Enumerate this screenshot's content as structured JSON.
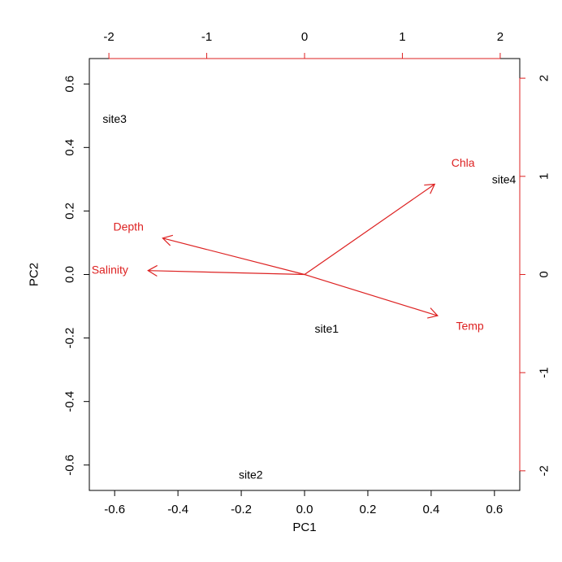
{
  "chart_data": {
    "type": "scatter",
    "subtype": "biplot",
    "title": "",
    "xlabel": "PC1",
    "ylabel": "PC2",
    "xlim": [
      -0.68,
      0.68
    ],
    "ylim": [
      -0.68,
      0.68
    ],
    "x_ticks": [
      -0.6,
      -0.4,
      -0.2,
      0.0,
      0.2,
      0.4,
      0.6
    ],
    "x_tick_labels": [
      "-0.6",
      "-0.4",
      "-0.2",
      "0.0",
      "0.2",
      "0.4",
      "0.6"
    ],
    "y_ticks": [
      -0.6,
      -0.4,
      -0.2,
      0.0,
      0.2,
      0.4,
      0.6
    ],
    "y_tick_labels": [
      "-0.6",
      "-0.4",
      "-0.2",
      "0.0",
      "0.2",
      "0.4",
      "0.6"
    ],
    "secondary_axes": {
      "range": [
        -2.2,
        2.2
      ],
      "top_ticks": [
        -2,
        -1,
        0,
        1,
        2
      ],
      "top_tick_labels": [
        "-2",
        "-1",
        "0",
        "1",
        "2"
      ],
      "right_ticks": [
        -2,
        -1,
        0,
        1,
        2
      ],
      "right_tick_labels": [
        "-2",
        "-1",
        "0",
        "1",
        "2"
      ],
      "color": "#dd2222"
    },
    "grid": false,
    "sites": [
      {
        "label": "site1",
        "x": 0.07,
        "y": -0.17
      },
      {
        "label": "site2",
        "x": -0.17,
        "y": -0.63
      },
      {
        "label": "site3",
        "x": -0.6,
        "y": 0.49
      },
      {
        "label": "site4",
        "x": 0.63,
        "y": 0.3
      }
    ],
    "variables": [
      {
        "label": "Chla",
        "x": 1.33,
        "y": 0.92,
        "label_x": 1.62,
        "label_y": 1.14
      },
      {
        "label": "Depth",
        "x": -1.45,
        "y": 0.37,
        "label_x": -1.8,
        "label_y": 0.49
      },
      {
        "label": "Salinity",
        "x": -1.6,
        "y": 0.04,
        "label_x": -1.99,
        "label_y": 0.05
      },
      {
        "label": "Temp",
        "x": 1.36,
        "y": -0.42,
        "label_x": 1.69,
        "label_y": -0.52
      }
    ],
    "colors": {
      "sites": "#000000",
      "variables": "#dd2222",
      "axes": "#000000"
    }
  }
}
